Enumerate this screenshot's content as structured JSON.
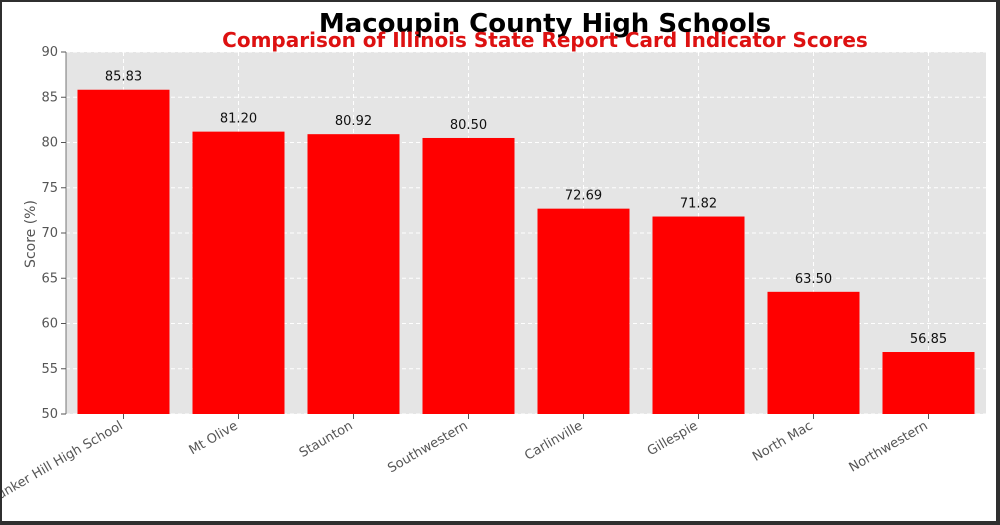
{
  "chart_data": {
    "type": "bar",
    "title": "Macoupin County High Schools",
    "subtitle": "Comparison of Illinois State Report Card Indicator Scores",
    "xlabel": "",
    "ylabel": "Score (%)",
    "ylim": [
      50,
      90
    ],
    "yticks": [
      50,
      55,
      60,
      65,
      70,
      75,
      80,
      85,
      90
    ],
    "grid": true,
    "categories": [
      "Bunker Hill High School",
      "Mt Olive",
      "Staunton",
      "Southwestern",
      "Carlinville",
      "Gillespie",
      "North Mac",
      "Northwestern"
    ],
    "values": [
      85.83,
      81.2,
      80.92,
      80.5,
      72.69,
      71.82,
      63.5,
      56.85
    ],
    "value_labels": [
      "85.83",
      "81.20",
      "80.92",
      "80.50",
      "72.69",
      "71.82",
      "63.50",
      "56.85"
    ],
    "colors": {
      "bar": "#ff0000",
      "subtitle": "#dd1111",
      "title": "#000000",
      "plot_background": "#e5e5e5",
      "grid": "#ffffff"
    }
  }
}
